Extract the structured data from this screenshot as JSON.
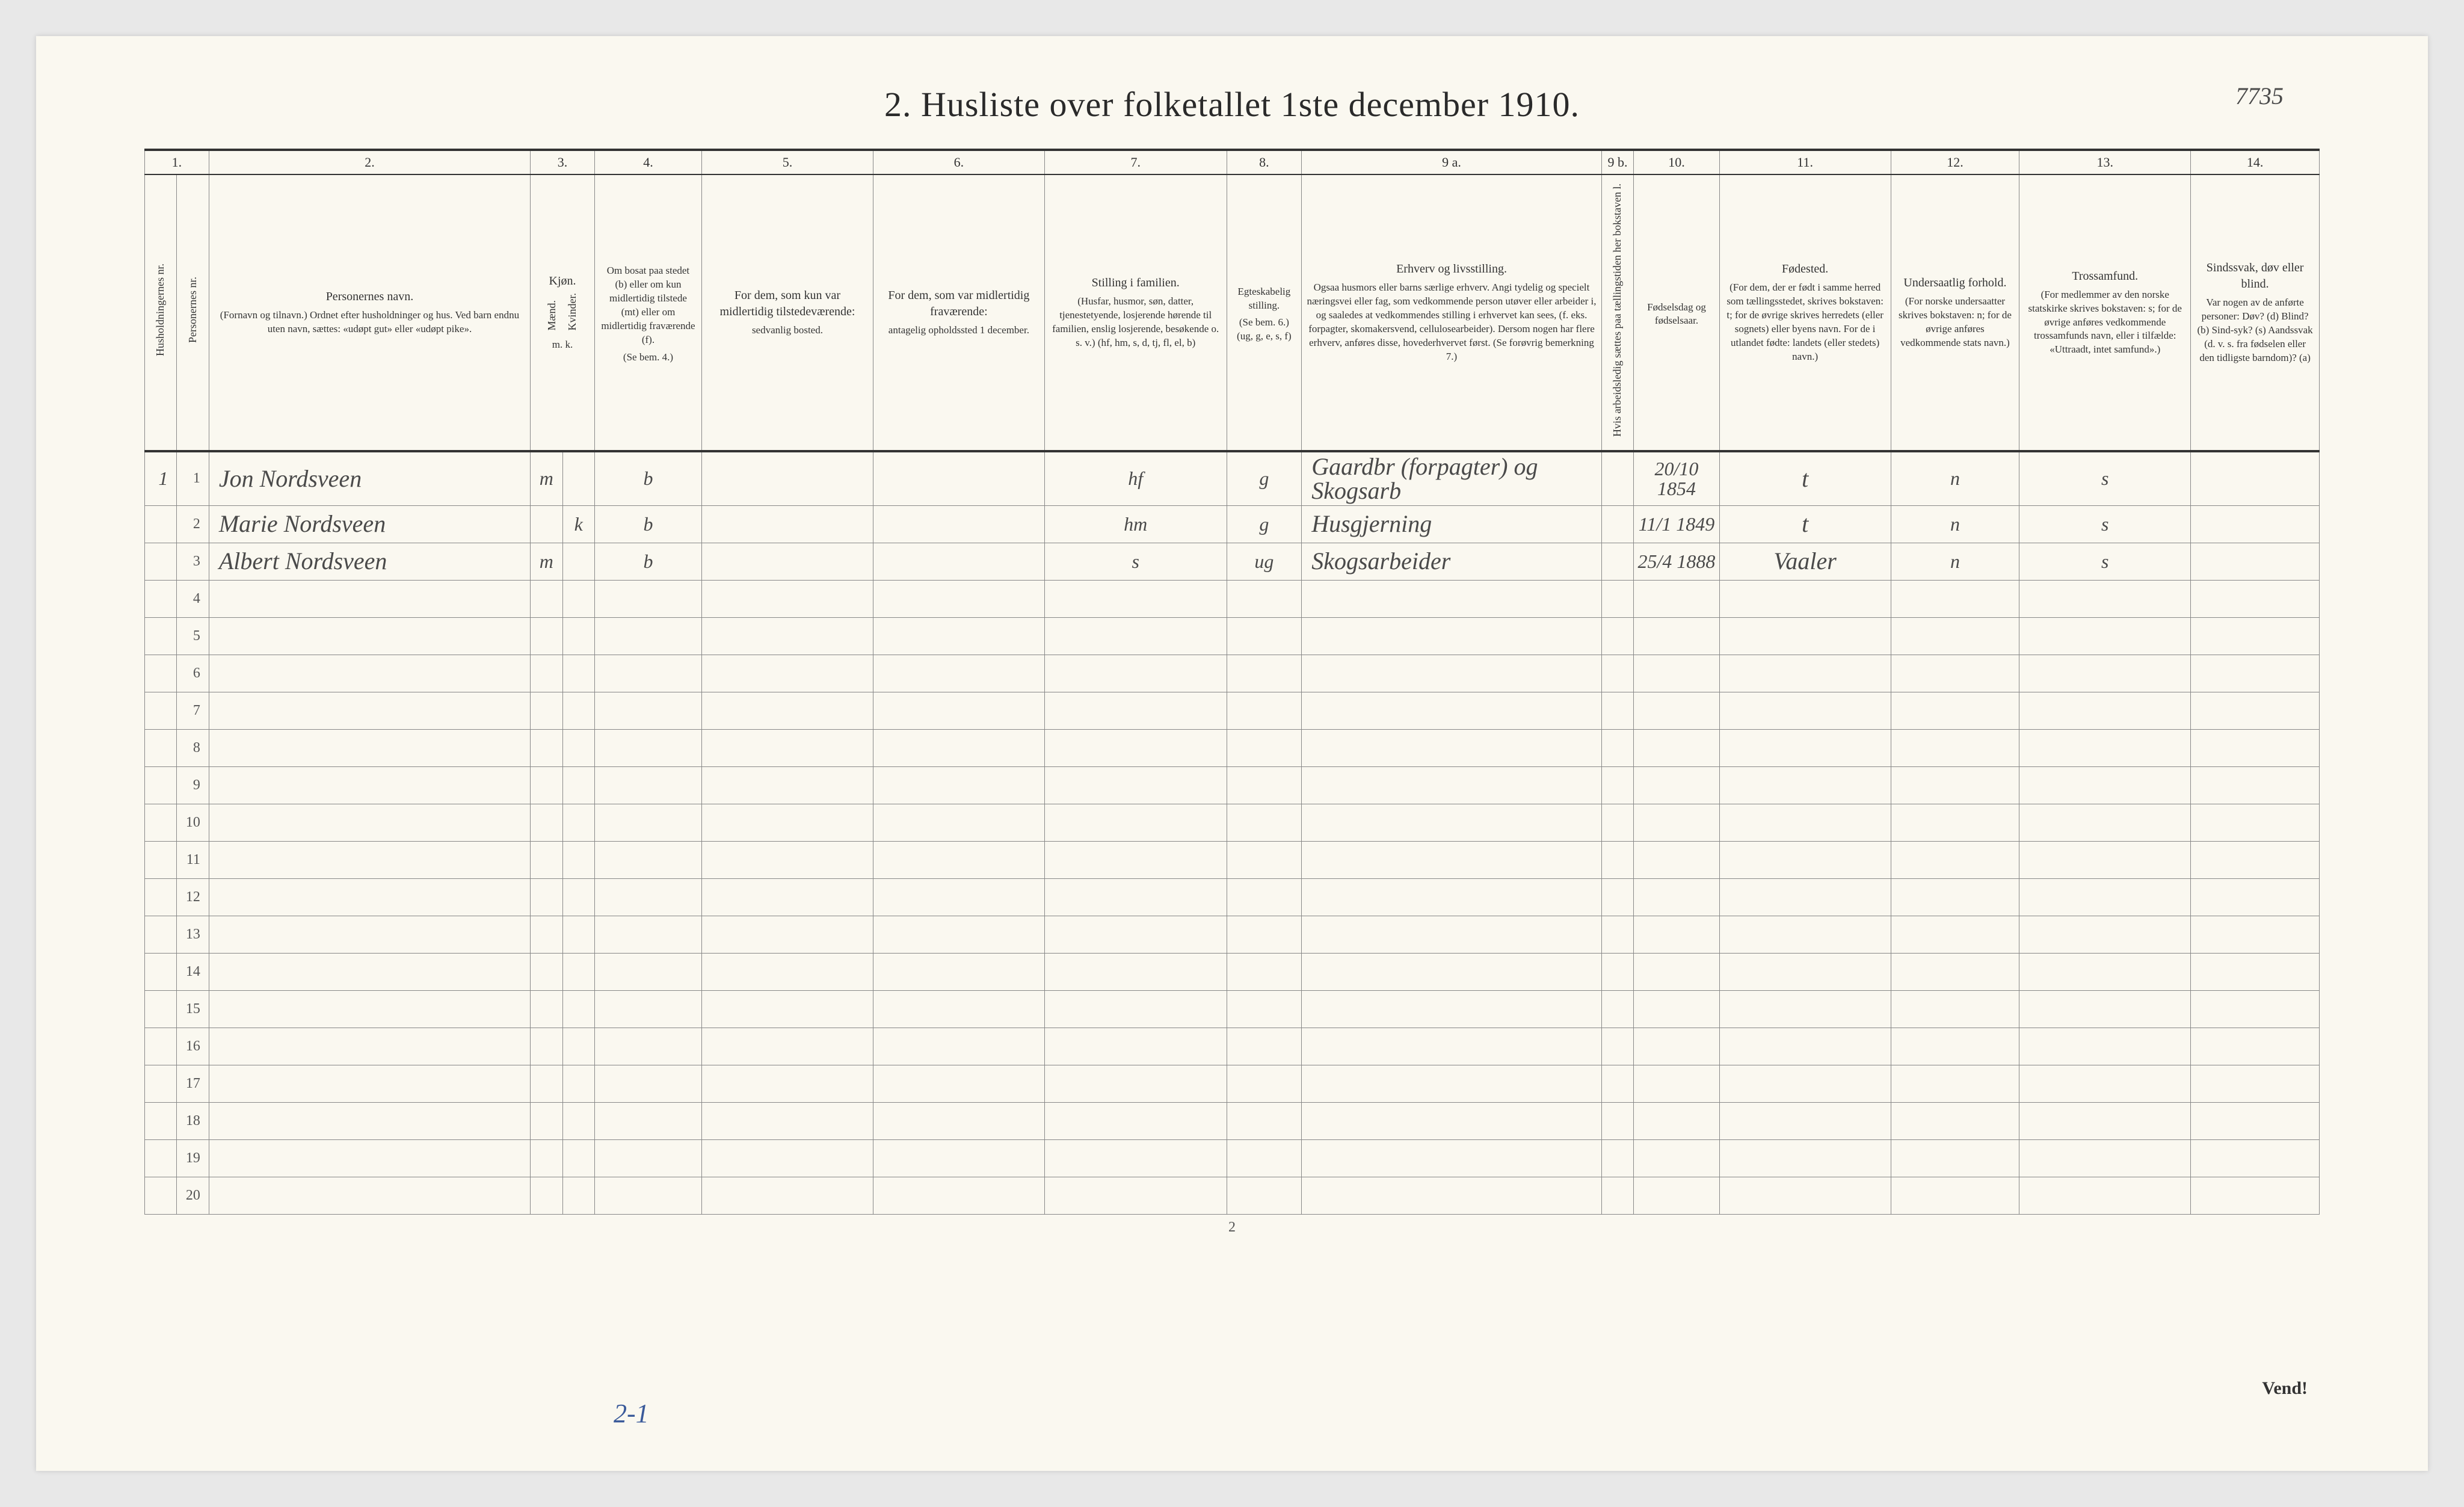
{
  "title": "2.   Husliste over folketallet 1ste december 1910.",
  "annotation_tr": "7735",
  "annotation_bl": "2-1",
  "footer_page": "2",
  "vend": "Vend!",
  "column_numbers": [
    "1.",
    "2.",
    "3.",
    "4.",
    "5.",
    "6.",
    "7.",
    "8.",
    "9 a.",
    "9 b.",
    "10.",
    "11.",
    "12.",
    "13.",
    "14."
  ],
  "headers": {
    "c1a": "Husholdningernes nr.",
    "c1b": "Personernes nr.",
    "c2": "Personernes navn.",
    "c2_sub": "(Fornavn og tilnavn.)\nOrdnet efter husholdninger og hus.\nVed barn endnu uten navn, sættes: «udøpt gut» eller «udøpt pike».",
    "c3": "Kjøn.",
    "c3a": "Mænd.",
    "c3b": "Kvinder.",
    "c3_sub": "m.  k.",
    "c4": "Om bosat paa stedet (b) eller om kun midlertidig tilstede (mt) eller om midlertidig fraværende (f).",
    "c4_sub": "(Se bem. 4.)",
    "c5": "For dem, som kun var midlertidig tilstedeværende:",
    "c5_sub": "sedvanlig bosted.",
    "c6": "For dem, som var midlertidig fraværende:",
    "c6_sub": "antagelig opholdssted 1 december.",
    "c7": "Stilling i familien.",
    "c7_sub": "(Husfar, husmor, søn, datter, tjenestetyende, losjerende hørende til familien, enslig losjerende, besøkende o. s. v.)\n(hf, hm, s, d, tj, fl, el, b)",
    "c8": "Egteskabelig stilling.",
    "c8_sub": "(Se bem. 6.)\n(ug, g, e, s, f)",
    "c9a": "Erhverv og livsstilling.",
    "c9a_sub": "Ogsaa husmors eller barns særlige erhverv.\nAngi tydelig og specielt næringsvei eller fag, som vedkommende person utøver eller arbeider i, og saaledes at vedkommendes stilling i erhvervet kan sees, (f. eks. forpagter, skomakersvend, cellulosearbeider). Dersom nogen har flere erhverv, anføres disse, hovederhvervet først.\n(Se forøvrig bemerkning 7.)",
    "c9b": "Hvis arbeidsledig sættes paa tællingstiden her bokstaven l.",
    "c10": "Fødselsdag og fødselsaar.",
    "c11": "Fødested.",
    "c11_sub": "(For dem, der er født i samme herred som tællingsstedet, skrives bokstaven: t; for de øvrige skrives herredets (eller sognets) eller byens navn. For de i utlandet fødte: landets (eller stedets) navn.)",
    "c12": "Undersaatlig forhold.",
    "c12_sub": "(For norske undersaatter skrives bokstaven: n; for de øvrige anføres vedkommende stats navn.)",
    "c13": "Trossamfund.",
    "c13_sub": "(For medlemmer av den norske statskirke skrives bokstaven: s; for de øvrige anføres vedkommende trossamfunds navn, eller i tilfælde: «Uttraadt, intet samfund».)",
    "c14": "Sindssvak, døv eller blind.",
    "c14_sub": "Var nogen av de anførte personer:\nDøv?      (d)\nBlind?    (b)\nSind-syk? (s)\nAandssvak (d. v. s. fra fødselen eller den tidligste barndom)? (a)"
  },
  "rows": [
    {
      "hh": "1",
      "pn": "1",
      "name": "Jon Nordsveen",
      "sex_m": "m",
      "sex_k": "",
      "stay": "b",
      "c5": "",
      "c6": "",
      "famrole": "hf",
      "marital": "g",
      "occupation": "Gaardbr (forpagter) og Skogsarb",
      "c9b": "",
      "birth": "20/10 1854",
      "birthplace": "t",
      "nationality": "n",
      "faith": "s",
      "c14": ""
    },
    {
      "hh": "",
      "pn": "2",
      "name": "Marie Nordsveen",
      "sex_m": "",
      "sex_k": "k",
      "stay": "b",
      "c5": "",
      "c6": "",
      "famrole": "hm",
      "marital": "g",
      "occupation": "Husgjerning",
      "c9b": "",
      "birth": "11/1 1849",
      "birthplace": "t",
      "nationality": "n",
      "faith": "s",
      "c14": ""
    },
    {
      "hh": "",
      "pn": "3",
      "name": "Albert Nordsveen",
      "sex_m": "m",
      "sex_k": "",
      "stay": "b",
      "c5": "",
      "c6": "",
      "famrole": "s",
      "marital": "ug",
      "occupation": "Skogsarbeider",
      "c9b": "",
      "birth": "25/4 1888",
      "birthplace": "Vaaler",
      "nationality": "n",
      "faith": "s",
      "c14": ""
    }
  ],
  "empty_row_count": 17,
  "empty_row_labels": [
    "4",
    "5",
    "6",
    "7",
    "8",
    "9",
    "10",
    "11",
    "12",
    "13",
    "14",
    "15",
    "16",
    "17",
    "18",
    "19",
    "20"
  ],
  "colors": {
    "paper": "#faf8f0",
    "ink": "#333333",
    "handwriting": "#4a4a4a",
    "pencil_blue": "#3a5a9a",
    "rule": "#888888"
  }
}
